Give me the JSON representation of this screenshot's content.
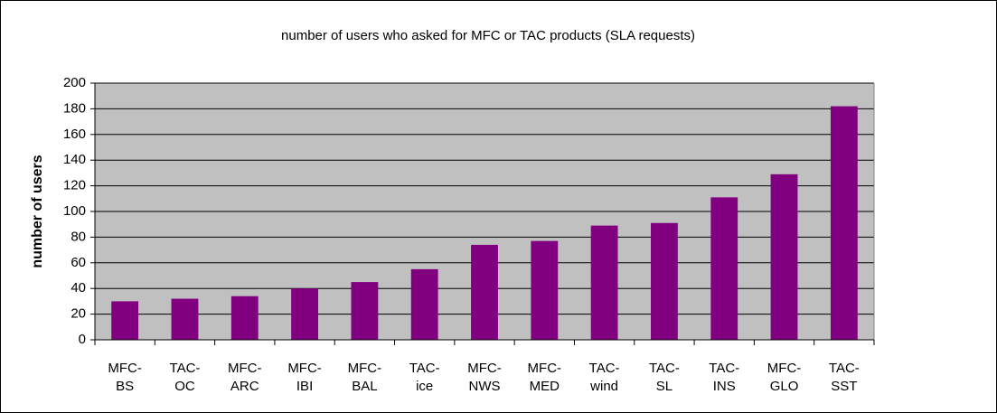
{
  "chart_data": {
    "type": "bar",
    "title": "number of users who asked for MFC or TAC products (SLA requests)",
    "y_label": "number of users",
    "categories": [
      "MFC-BS",
      "TAC-OC",
      "MFC-ARC",
      "MFC-IBI",
      "MFC-BAL",
      "TAC-ice",
      "MFC-NWS",
      "MFC-MED",
      "TAC-wind",
      "TAC-SL",
      "TAC-INS",
      "MFC-GLO",
      "TAC-SST"
    ],
    "values": [
      30,
      32,
      34,
      40,
      45,
      55,
      74,
      77,
      89,
      91,
      111,
      129,
      182
    ],
    "color": "#800080",
    "ylim": [
      0,
      200
    ],
    "yticks": [
      0,
      20,
      40,
      60,
      80,
      100,
      120,
      140,
      160,
      180,
      200
    ],
    "grid": true
  }
}
